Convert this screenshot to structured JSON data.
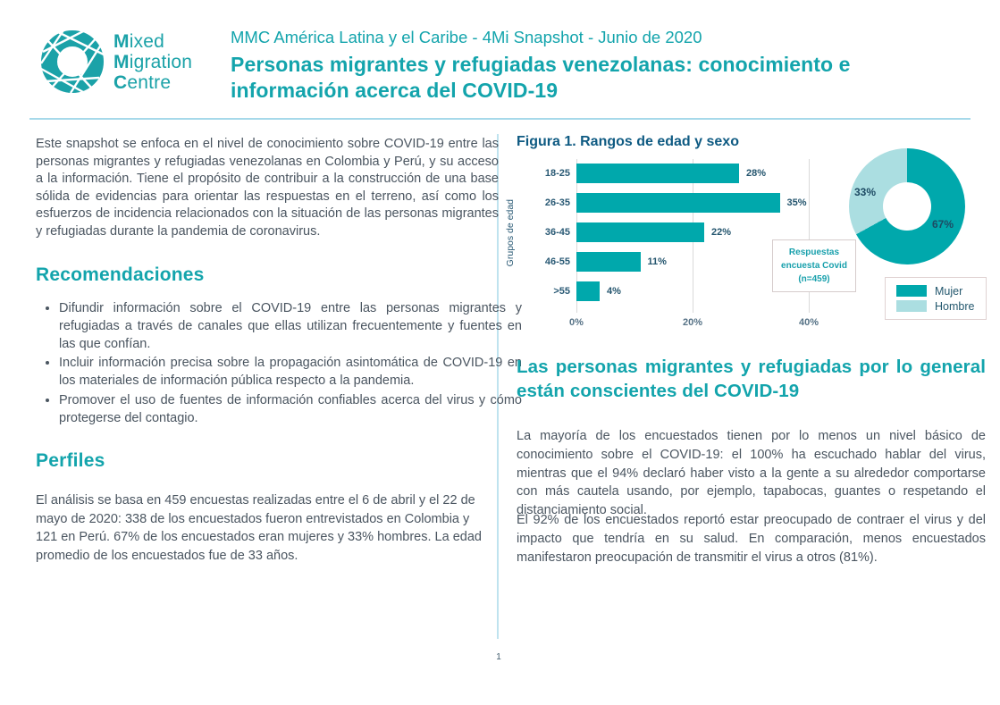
{
  "brand": {
    "logo_lines": [
      {
        "initial": "M",
        "rest": "ixed"
      },
      {
        "initial": "M",
        "rest": "igration"
      },
      {
        "initial": "C",
        "rest": "entre"
      }
    ],
    "teal": "#1ba2a8"
  },
  "header": {
    "kicker": "MMC América Latina y el Caribe - 4Mi Snapshot - Junio de 2020",
    "title": "Personas migrantes y refugiadas venezolanas: conocimiento e información acerca del COVID-19"
  },
  "left": {
    "intro": "Este snapshot se enfoca en el nivel de conocimiento sobre COVID-19 entre las personas migrantes y refugiadas venezolanas en Colombia y Perú, y su acceso a la información. Tiene el propósito de contribuir a la construcción de una base sólida de evidencias para orientar las respuestas en el terreno, así como los esfuerzos de incidencia relacionados con la situación de las personas migrantes y refugiadas durante la pandemia de coronavirus.",
    "recommendations_heading": "Recomendaciones",
    "recommendations": [
      "Difundir información sobre el COVID-19 entre las personas migrantes y refugiadas a través de canales que ellas utilizan frecuentemente y fuentes en las que confían.",
      "Incluir información precisa sobre la propagación asintomática de COVID-19 en los materiales de información pública respecto a la pandemia.",
      "Promover el uso de fuentes de información confiables acerca del virus y cómo protegerse del contagio."
    ],
    "profiles_heading": "Perfiles",
    "profiles_text": "El análisis se basa en 459 encuestas realizadas entre el 6 de abril y el 22 de mayo de 2020: 338 de los encuestados fueron entrevistados en Colombia y 121 en Perú. 67% de los encuestados eran mujeres y 33% hombres. La edad promedio de los encuestados fue de 33 años."
  },
  "right": {
    "figure_title": "Figura 1. Rangos de edad y sexo",
    "section_heading": "Las personas migrantes y refugiadas por lo general están conscientes del COVID-19",
    "paragraph_1": "La mayoría de los encuestados tienen por lo menos un nivel básico de conocimiento sobre el COVID-19: el 100% ha escuchado hablar del virus, mientras que el 94% declaró haber visto a la gente a su alrededor comportarse con más cautela usando, por ejemplo, tapabocas, guantes o respetando el distanciamiento social.",
    "paragraph_2": "El 92% de los encuestados reportó estar preocupado de contraer el virus y del impacto que tendría en su salud. En comparación, menos encuestados manifestaron preocupación de transmitir el virus a otros (81%)."
  },
  "chart_data": [
    {
      "type": "bar",
      "orientation": "horizontal",
      "title": "Figura 1. Rangos de edad y sexo",
      "ylabel": "Grupos de edad",
      "categories": [
        "18-25",
        "26-35",
        "36-45",
        "46-55",
        ">55"
      ],
      "values": [
        28,
        35,
        22,
        11,
        4
      ],
      "value_labels": [
        "28%",
        "35%",
        "22%",
        "11%",
        "4%"
      ],
      "xticks": [
        "0%",
        "20%",
        "40%"
      ],
      "xtick_values": [
        0,
        20,
        40
      ],
      "xlim": [
        0,
        47
      ],
      "grid": "vertical",
      "bar_color": "#00a8ac",
      "annotation": "Respuestas encuesta Covid (n=459)"
    },
    {
      "type": "pie",
      "donut": true,
      "categories": [
        "Mujer",
        "Hombre"
      ],
      "values": [
        67,
        33
      ],
      "labels": [
        "67%",
        "33%"
      ],
      "colors": [
        "#00a8ac",
        "#abdee1"
      ],
      "legend_position": "bottom-right"
    }
  ],
  "footer": {
    "page_number": "1"
  }
}
